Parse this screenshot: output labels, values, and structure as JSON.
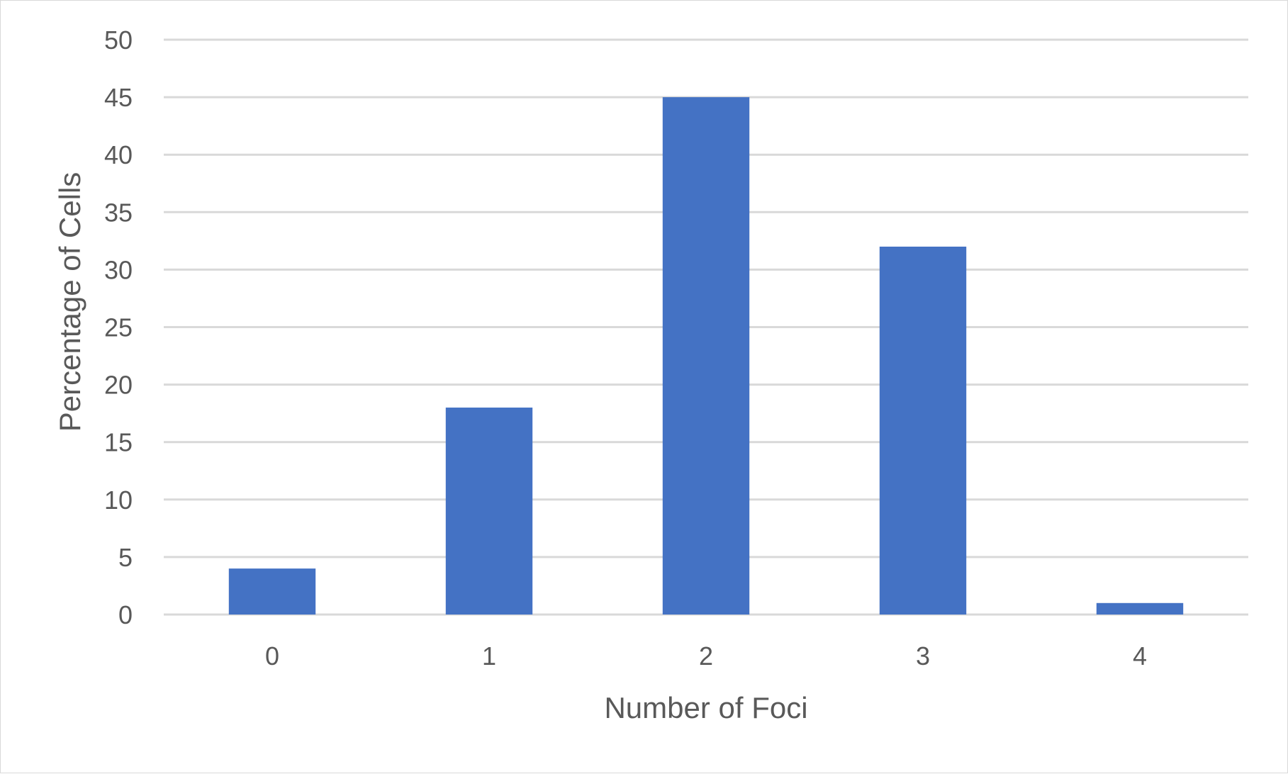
{
  "chart_data": {
    "type": "bar",
    "title": "",
    "xlabel": "Number of Foci",
    "ylabel": "Percentage of Cells",
    "categories": [
      "0",
      "1",
      "2",
      "3",
      "4"
    ],
    "values": [
      4,
      18,
      45,
      32,
      1
    ],
    "ylim": [
      0,
      50
    ],
    "yticks": [
      0,
      5,
      10,
      15,
      20,
      25,
      30,
      35,
      40,
      45,
      50
    ],
    "grid": true,
    "legend": "none",
    "colors": {
      "bar": "#4472C4",
      "gridline": "#d9d9d9",
      "text": "#595959"
    }
  }
}
